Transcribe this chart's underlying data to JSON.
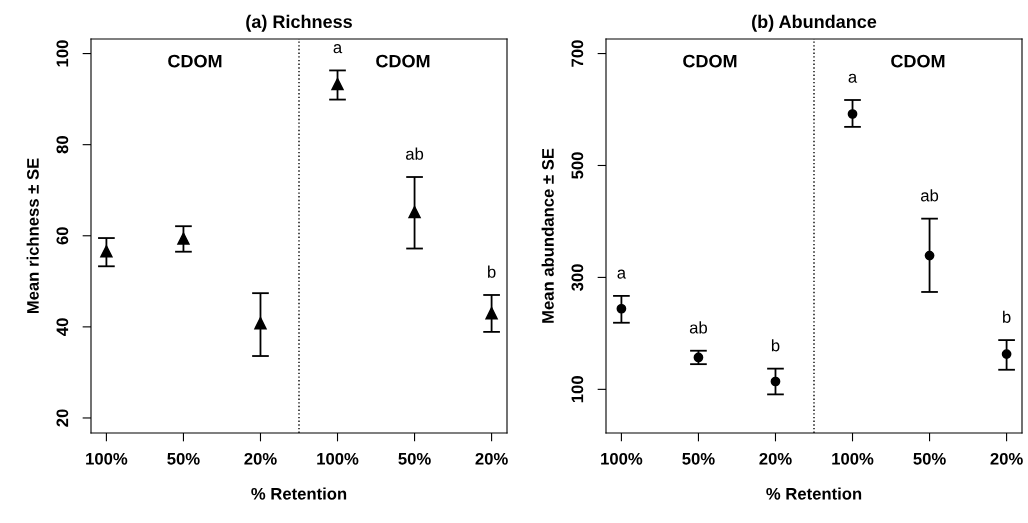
{
  "chart_data": [
    {
      "type": "scatter",
      "title": "(a) Richness",
      "xlabel": "% Retention",
      "ylabel": "Mean richness ± SE",
      "marker": "triangle",
      "grid": false,
      "categories": [
        "100%",
        "50%",
        "20%",
        "100%",
        "50%",
        "20%"
      ],
      "ylim": [
        16.7,
        103.2
      ],
      "yticks": [
        20,
        40,
        60,
        80,
        100
      ],
      "series": [
        {
          "color": "#000000",
          "values": [
            56.6,
            59.4,
            40.8,
            93.3,
            65.2,
            43.0
          ],
          "errors": [
            [
              53.3,
              59.5
            ],
            [
              56.5,
              62.1
            ],
            [
              33.6,
              47.4
            ],
            [
              89.9,
              96.3
            ],
            [
              57.2,
              72.9
            ],
            [
              38.9,
              47.0
            ]
          ],
          "value_labels": [
            null,
            null,
            null,
            "a",
            "ab",
            "b"
          ]
        }
      ],
      "ref_lines": [
        {
          "axis": "x",
          "line_style": "dotted",
          "color": "#000000"
        }
      ],
      "annotations": [
        "CDOM",
        "CDOM"
      ]
    },
    {
      "type": "scatter",
      "title": "(b) Abundance",
      "xlabel": "% Retention",
      "ylabel": "Mean abundance ± SE",
      "marker": "circle",
      "grid": false,
      "categories": [
        "100%",
        "50%",
        "20%",
        "100%",
        "50%",
        "20%"
      ],
      "ylim": [
        22,
        726
      ],
      "yticks": [
        100,
        300,
        500,
        700
      ],
      "series": [
        {
          "color": "#000000",
          "values": [
            244,
            157,
            114,
            592,
            339,
            163
          ],
          "errors": [
            [
              219,
              267
            ],
            [
              145,
              169
            ],
            [
              91,
              137
            ],
            [
              569,
              617
            ],
            [
              274,
              405
            ],
            [
              135,
              188
            ]
          ],
          "value_labels": [
            "a",
            "ab",
            "b",
            "a",
            "ab",
            "b"
          ]
        }
      ],
      "ref_lines": [
        {
          "axis": "x",
          "line_style": "dotted",
          "color": "#000000"
        }
      ],
      "annotations": [
        "CDOM",
        "CDOM"
      ]
    }
  ]
}
